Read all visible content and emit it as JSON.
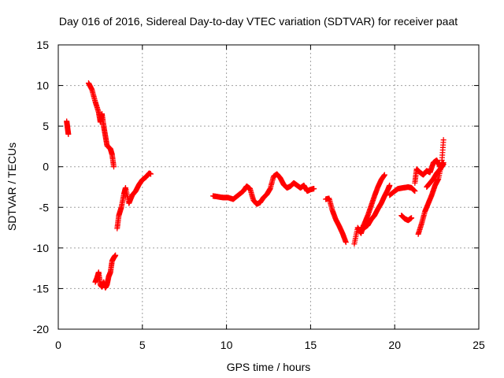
{
  "chart_data": {
    "type": "scatter",
    "title": "Day 016 of 2016, Sidereal Day-to-day VTEC variation (SDTVAR) for receiver paat",
    "xlabel": "GPS time / hours",
    "ylabel": "SDTVAR / TECUs",
    "xlim": [
      0,
      25
    ],
    "ylim": [
      -20,
      15
    ],
    "xticks": [
      0,
      5,
      10,
      15,
      20,
      25
    ],
    "yticks": [
      -20,
      -15,
      -10,
      -5,
      0,
      5,
      10,
      15
    ],
    "grid": true,
    "marker": "+",
    "color": "#ff0000",
    "segments": [
      [
        [
          0.5,
          5.6
        ],
        [
          0.55,
          4.8
        ],
        [
          0.6,
          4.0
        ]
      ],
      [
        [
          1.8,
          10.3
        ],
        [
          2.0,
          9.5
        ],
        [
          2.2,
          8.0
        ],
        [
          2.4,
          6.7
        ],
        [
          2.5,
          5.5
        ],
        [
          2.6,
          6.5
        ],
        [
          2.7,
          5.0
        ],
        [
          2.8,
          3.8
        ],
        [
          2.9,
          2.6
        ],
        [
          3.1,
          2.2
        ],
        [
          3.2,
          1.5
        ],
        [
          3.3,
          0.0
        ]
      ],
      [
        [
          2.2,
          -14.2
        ],
        [
          2.3,
          -13.7
        ],
        [
          2.4,
          -13.0
        ],
        [
          2.5,
          -14.5
        ],
        [
          2.6,
          -14.8
        ],
        [
          2.7,
          -14.2
        ],
        [
          2.8,
          -14.9
        ],
        [
          2.9,
          -14.5
        ],
        [
          3.0,
          -13.5
        ],
        [
          3.1,
          -13.0
        ],
        [
          3.2,
          -11.6
        ],
        [
          3.3,
          -11.2
        ],
        [
          3.4,
          -10.9
        ]
      ],
      [
        [
          3.5,
          -7.6
        ],
        [
          3.6,
          -6.0
        ],
        [
          3.75,
          -5.0
        ],
        [
          3.9,
          -3.4
        ],
        [
          4.0,
          -2.6
        ],
        [
          4.2,
          -4.5
        ],
        [
          4.4,
          -3.5
        ],
        [
          4.6,
          -3.0
        ],
        [
          4.8,
          -2.2
        ],
        [
          5.0,
          -1.6
        ],
        [
          5.2,
          -1.3
        ],
        [
          5.4,
          -0.8
        ],
        [
          5.5,
          -0.9
        ]
      ],
      [
        [
          9.2,
          -3.6
        ],
        [
          9.5,
          -3.7
        ],
        [
          9.8,
          -3.8
        ],
        [
          10.1,
          -3.8
        ],
        [
          10.4,
          -4.0
        ],
        [
          10.7,
          -3.5
        ],
        [
          11.0,
          -3.0
        ],
        [
          11.2,
          -2.4
        ],
        [
          11.4,
          -2.7
        ],
        [
          11.6,
          -4.1
        ],
        [
          11.8,
          -4.6
        ],
        [
          12.0,
          -4.4
        ],
        [
          12.2,
          -3.8
        ],
        [
          12.4,
          -3.4
        ],
        [
          12.6,
          -2.7
        ],
        [
          12.8,
          -1.2
        ],
        [
          13.0,
          -0.9
        ],
        [
          13.2,
          -1.4
        ],
        [
          13.4,
          -2.2
        ],
        [
          13.6,
          -2.6
        ],
        [
          13.8,
          -2.4
        ],
        [
          14.0,
          -2.0
        ],
        [
          14.2,
          -2.3
        ],
        [
          14.4,
          -2.6
        ],
        [
          14.6,
          -2.3
        ],
        [
          14.8,
          -3.0
        ],
        [
          15.0,
          -2.8
        ],
        [
          15.2,
          -2.7
        ]
      ],
      [
        [
          15.9,
          -4.0
        ],
        [
          16.1,
          -3.9
        ],
        [
          16.3,
          -5.4
        ],
        [
          16.5,
          -6.5
        ],
        [
          16.7,
          -7.3
        ],
        [
          16.9,
          -8.2
        ],
        [
          17.1,
          -9.3
        ]
      ],
      [
        [
          17.6,
          -9.5
        ],
        [
          17.8,
          -7.5
        ],
        [
          18.0,
          -8.2
        ],
        [
          18.2,
          -7.0
        ],
        [
          18.4,
          -6.0
        ],
        [
          18.6,
          -4.8
        ],
        [
          18.8,
          -3.6
        ],
        [
          19.0,
          -2.5
        ],
        [
          19.2,
          -1.6
        ],
        [
          19.4,
          -1.0
        ]
      ],
      [
        [
          18.0,
          -7.5
        ],
        [
          18.2,
          -7.5
        ],
        [
          18.4,
          -7.2
        ],
        [
          18.6,
          -6.5
        ],
        [
          18.8,
          -6.0
        ],
        [
          19.0,
          -5.2
        ],
        [
          19.2,
          -4.5
        ],
        [
          19.4,
          -3.6
        ],
        [
          19.6,
          -2.8
        ],
        [
          19.7,
          -2.3
        ]
      ],
      [
        [
          19.7,
          -3.5
        ],
        [
          20.0,
          -3.0
        ],
        [
          20.2,
          -2.7
        ],
        [
          20.5,
          -2.6
        ],
        [
          20.8,
          -2.5
        ],
        [
          21.0,
          -2.6
        ],
        [
          21.2,
          -3.0
        ]
      ],
      [
        [
          20.4,
          -6.0
        ],
        [
          20.6,
          -6.4
        ],
        [
          20.8,
          -6.6
        ],
        [
          21.0,
          -6.3
        ]
      ],
      [
        [
          21.2,
          -2.0
        ],
        [
          21.3,
          -0.3
        ],
        [
          21.5,
          -0.7
        ],
        [
          21.7,
          -1.0
        ],
        [
          21.9,
          -0.5
        ],
        [
          22.1,
          -0.7
        ],
        [
          22.3,
          0.5
        ],
        [
          22.5,
          0.8
        ],
        [
          22.7,
          0.0
        ],
        [
          22.9,
          0.5
        ]
      ],
      [
        [
          21.4,
          -8.3
        ],
        [
          21.6,
          -7.0
        ],
        [
          21.8,
          -5.5
        ],
        [
          22.0,
          -4.5
        ],
        [
          22.2,
          -3.5
        ],
        [
          22.4,
          -2.3
        ],
        [
          22.6,
          -1.5
        ],
        [
          22.8,
          0.5
        ],
        [
          22.9,
          3.3
        ]
      ],
      [
        [
          21.9,
          -2.5
        ],
        [
          22.1,
          -2.0
        ],
        [
          22.3,
          -1.5
        ],
        [
          22.5,
          -0.8
        ],
        [
          22.7,
          -0.3
        ],
        [
          22.9,
          0.3
        ]
      ]
    ]
  }
}
